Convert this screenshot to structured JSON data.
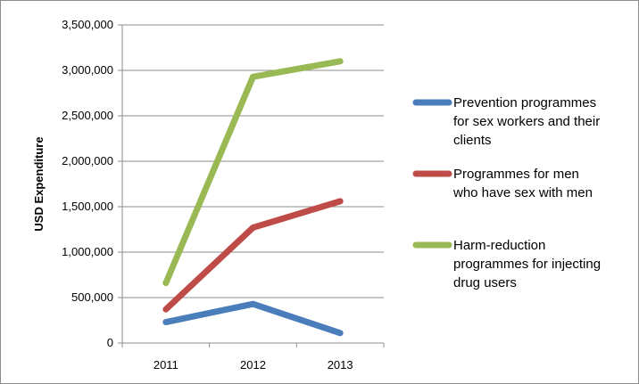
{
  "chart_data": {
    "type": "line",
    "title": "",
    "xlabel": "",
    "ylabel": "USD Expenditure",
    "categories": [
      "2011",
      "2012",
      "2013"
    ],
    "ylim": [
      0,
      3500000
    ],
    "yticks": [
      0,
      500000,
      1000000,
      1500000,
      2000000,
      2500000,
      3000000,
      3500000
    ],
    "ytick_labels": [
      "0",
      "500,000",
      "1,000,000",
      "1,500,000",
      "2,000,000",
      "2,500,000",
      "3,000,000",
      "3,500,000"
    ],
    "grid": true,
    "legend_position": "right",
    "series": [
      {
        "name": "Prevention programmes for sex workers and their clients",
        "legend_lines": [
          "Prevention programmes",
          "for sex workers and their",
          "clients"
        ],
        "color": "#4a7ebb",
        "values": [
          230000,
          430000,
          110000
        ]
      },
      {
        "name": "Programmes for men who have sex with men",
        "legend_lines": [
          "Programmes for men",
          "who have sex with men"
        ],
        "color": "#be4b48",
        "values": [
          370000,
          1270000,
          1560000
        ]
      },
      {
        "name": "Harm-reduction programmes for injecting drug users",
        "legend_lines": [
          "Harm-reduction",
          "programmes for injecting",
          "drug users"
        ],
        "color": "#98b954",
        "values": [
          660000,
          2930000,
          3100000
        ]
      }
    ]
  }
}
